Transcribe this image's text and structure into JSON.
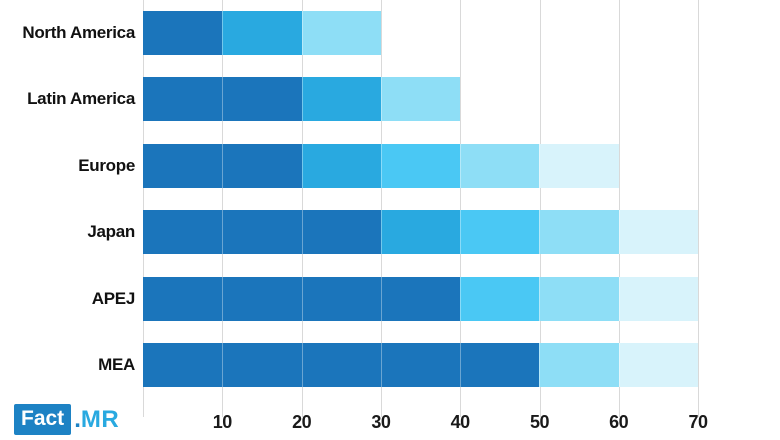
{
  "chart_data": {
    "type": "bar",
    "orientation": "horizontal",
    "stacked": true,
    "title": "",
    "xlabel": "",
    "ylabel": "",
    "xlim": [
      0,
      70
    ],
    "xticks": [
      10,
      20,
      30,
      40,
      50,
      60,
      70
    ],
    "grid": true,
    "palette": {
      "dark_blue": "#1b75bb",
      "medium_blue": "#29a9e0",
      "bright_cyan": "#4ac8f4",
      "light_sky": "#8edef6",
      "pale_blue": "#d8f3fb"
    },
    "rows": [
      {
        "label": "North America",
        "total": 30,
        "segments": [
          {
            "value": 10,
            "color": "#1b75bb"
          },
          {
            "value": 10,
            "color": "#29a9e0"
          },
          {
            "value": 10,
            "color": "#8edef6"
          }
        ]
      },
      {
        "label": "Latin America",
        "total": 40,
        "segments": [
          {
            "value": 20,
            "color": "#1b75bb"
          },
          {
            "value": 10,
            "color": "#29a9e0"
          },
          {
            "value": 10,
            "color": "#8edef6"
          }
        ]
      },
      {
        "label": "Europe",
        "total": 60,
        "segments": [
          {
            "value": 20,
            "color": "#1b75bb"
          },
          {
            "value": 10,
            "color": "#29a9e0"
          },
          {
            "value": 10,
            "color": "#4ac8f4"
          },
          {
            "value": 10,
            "color": "#8edef6"
          },
          {
            "value": 10,
            "color": "#d8f3fb"
          }
        ]
      },
      {
        "label": "Japan",
        "total": 70,
        "segments": [
          {
            "value": 30,
            "color": "#1b75bb"
          },
          {
            "value": 10,
            "color": "#29a9e0"
          },
          {
            "value": 10,
            "color": "#4ac8f4"
          },
          {
            "value": 10,
            "color": "#8edef6"
          },
          {
            "value": 10,
            "color": "#d8f3fb"
          }
        ]
      },
      {
        "label": "APEJ",
        "total": 70,
        "segments": [
          {
            "value": 40,
            "color": "#1b75bb"
          },
          {
            "value": 10,
            "color": "#4ac8f4"
          },
          {
            "value": 10,
            "color": "#8edef6"
          },
          {
            "value": 10,
            "color": "#d8f3fb"
          }
        ]
      },
      {
        "label": "MEA",
        "total": 70,
        "segments": [
          {
            "value": 50,
            "color": "#1b75bb"
          },
          {
            "value": 10,
            "color": "#8edef6"
          },
          {
            "value": 10,
            "color": "#d8f3fb"
          }
        ]
      }
    ]
  },
  "logo": {
    "fact": "Fact",
    "dot": ".",
    "mr": "MR",
    "box_color": "#1d82c4",
    "mr_color": "#29a9e0"
  }
}
